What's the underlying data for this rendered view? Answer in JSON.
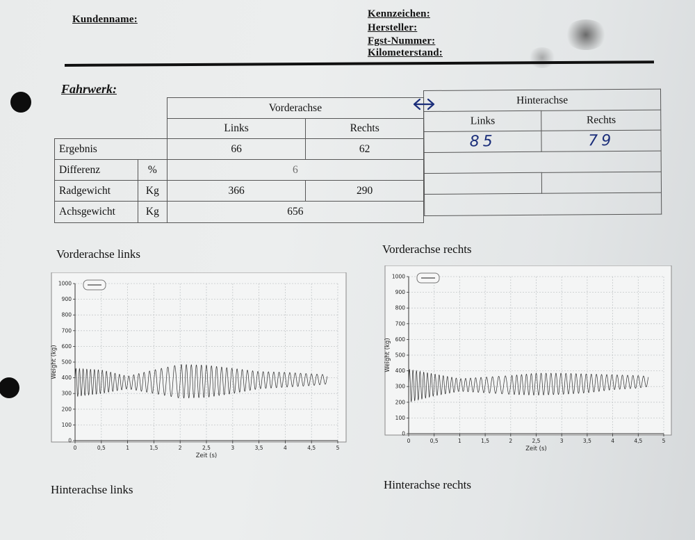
{
  "header": {
    "kundenname": "Kundenname:",
    "kennzeichen": "Kennzeichen:",
    "hersteller": "Hersteller:",
    "fgst": "Fgst-Nummer:",
    "km": "Kilometerstand:"
  },
  "section_title": "Fahrwerk:",
  "table": {
    "vorderachse": "Vorderachse",
    "hinterachse": "Hinterachse",
    "links": "Links",
    "rechts": "Rechts",
    "rows": {
      "ergebnis": "Ergebnis",
      "differenz": "Differenz",
      "radgewicht": "Radgewicht",
      "achsgewicht": "Achsgewicht"
    },
    "units": {
      "percent": "%",
      "kg": "Kg"
    },
    "values": {
      "front_ergebnis_links": "66",
      "front_ergebnis_rechts": "62",
      "rear_ergebnis_links": "85",
      "rear_ergebnis_rechts": "79",
      "front_differenz": "6",
      "front_radgewicht_links": "366",
      "front_radgewicht_rechts": "290",
      "front_achsgewicht": "656"
    }
  },
  "captions": {
    "vl": "Vorderachse links",
    "vr": "Vorderachse rechts",
    "hl": "Hinterachse links",
    "hr": "Hinterachse rechts"
  },
  "chart_data": [
    {
      "type": "line",
      "title": "Vorderachse links",
      "xlabel": "Zeit (s)",
      "ylabel": "Weight (kg)",
      "xlim": [
        0,
        5
      ],
      "ylim": [
        0,
        1000
      ],
      "xticks": [
        "0",
        "0,5",
        "1",
        "1,5",
        "2",
        "2,5",
        "3",
        "3,5",
        "4",
        "4,5",
        "5"
      ],
      "yticks": [
        "0",
        "100",
        "200",
        "300",
        "400",
        "500",
        "600",
        "700",
        "800",
        "900",
        "1000"
      ],
      "grid": true,
      "series": [
        {
          "x": [
            0,
            0.5,
            1,
            1.5,
            2,
            2.5,
            3,
            3.5,
            4,
            4.5,
            4.8
          ],
          "y_max": [
            460,
            450,
            410,
            450,
            485,
            480,
            460,
            440,
            435,
            425,
            420
          ],
          "y_min": [
            280,
            300,
            330,
            300,
            270,
            275,
            300,
            330,
            340,
            350,
            360
          ]
        }
      ]
    },
    {
      "type": "line",
      "title": "Vorderachse rechts",
      "xlabel": "Zeit (s)",
      "ylabel": "Weight (kg)",
      "xlim": [
        0,
        5
      ],
      "ylim": [
        0,
        1000
      ],
      "xticks": [
        "0",
        "0,5",
        "1",
        "1,5",
        "2",
        "2,5",
        "3",
        "3,5",
        "4",
        "4,5",
        "5"
      ],
      "yticks": [
        "0",
        "100",
        "200",
        "300",
        "400",
        "500",
        "600",
        "700",
        "800",
        "900",
        "1000"
      ],
      "grid": true,
      "series": [
        {
          "x": [
            0,
            0.5,
            1,
            1.5,
            2,
            2.5,
            3,
            3.5,
            4,
            4.5,
            4.7
          ],
          "y_max": [
            410,
            380,
            350,
            360,
            370,
            385,
            385,
            380,
            375,
            370,
            365
          ],
          "y_min": [
            200,
            240,
            270,
            260,
            250,
            245,
            250,
            260,
            280,
            290,
            300
          ]
        }
      ]
    }
  ]
}
